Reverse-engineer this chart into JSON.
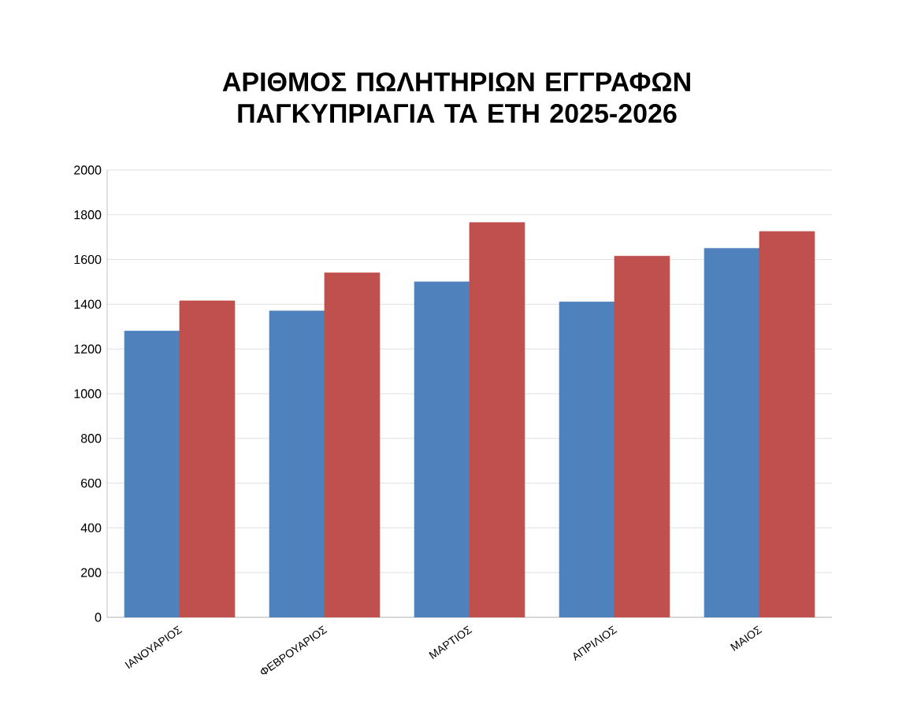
{
  "chart_data": {
    "type": "bar",
    "title": "ΑΡΙΘΜΟΣ ΠΩΛΗΤΗΡΙΩΝ ΕΓΓΡΑΦΩΝ ΠΑΓΚΥΠΡΙΑΓΙΑ ΤΑ ΕΤΗ 2025-2026",
    "categories": [
      "ΙΑΝΟΥΑΡΙΟΣ",
      "ΦΕΒΡΟΥΑΡΙΟΣ",
      "ΜΑΡΤΙΟΣ",
      "ΑΠΡΙΛΙΟΣ",
      "ΜΑΙΟΣ"
    ],
    "series": [
      {
        "color": "#4f81bd",
        "values": [
          1280,
          1370,
          1500,
          1410,
          1650
        ]
      },
      {
        "color": "#c0504d",
        "values": [
          1415,
          1540,
          1765,
          1615,
          1725
        ]
      }
    ],
    "ylim": [
      0,
      2000
    ],
    "yticks": [
      0,
      200,
      400,
      600,
      800,
      1000,
      1200,
      1400,
      1600,
      1800,
      2000
    ],
    "grid": "y"
  }
}
